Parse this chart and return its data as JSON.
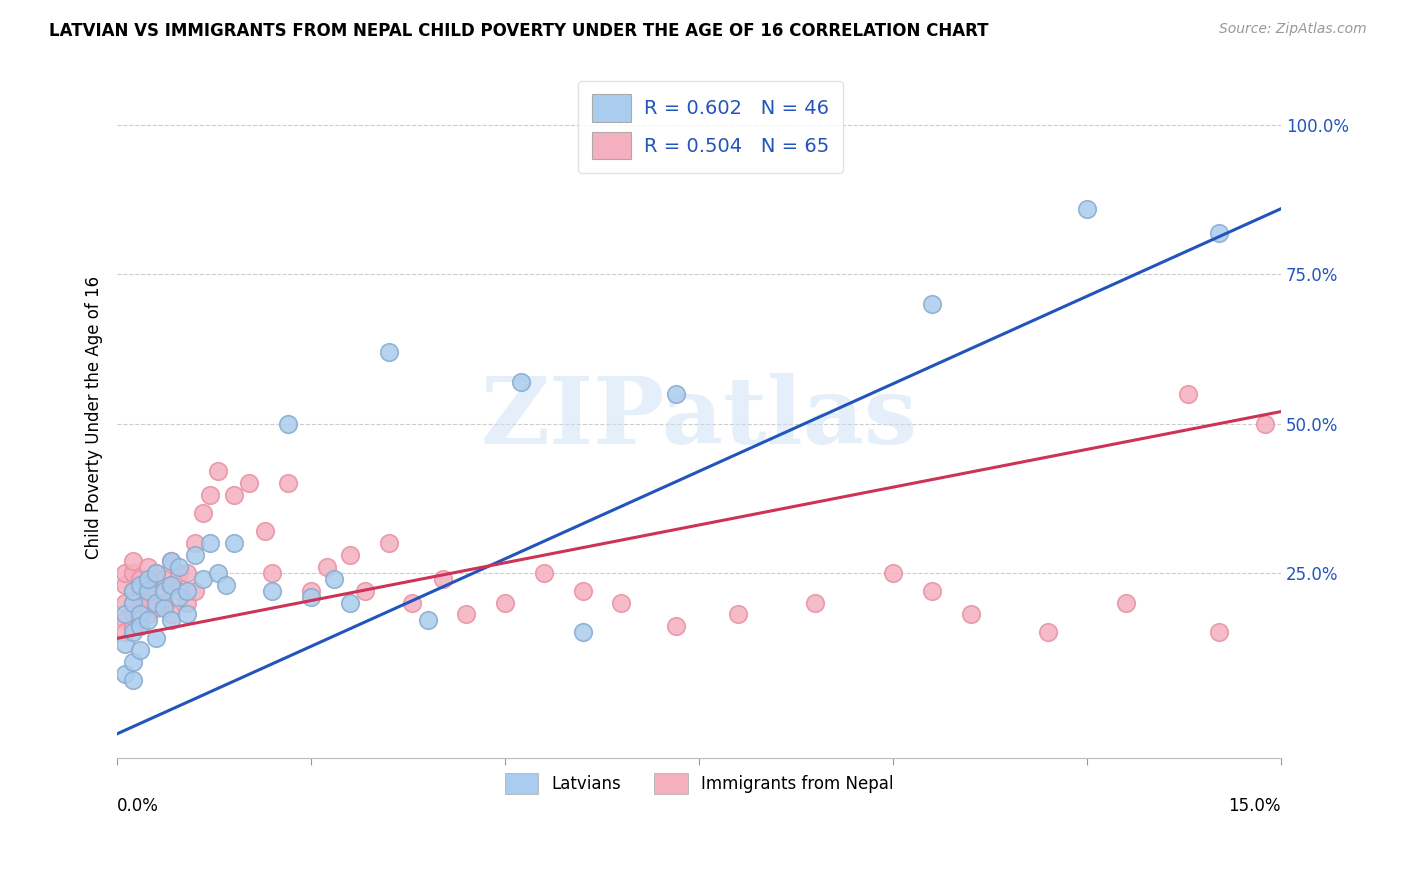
{
  "title": "LATVIAN VS IMMIGRANTS FROM NEPAL CHILD POVERTY UNDER THE AGE OF 16 CORRELATION CHART",
  "source": "Source: ZipAtlas.com",
  "ylabel": "Child Poverty Under the Age of 16",
  "ytick_labels": [
    "25.0%",
    "50.0%",
    "75.0%",
    "100.0%"
  ],
  "ytick_values": [
    0.25,
    0.5,
    0.75,
    1.0
  ],
  "xmin": 0.0,
  "xmax": 0.15,
  "ymin": -0.06,
  "ymax": 1.08,
  "legend_blue_label": "R = 0.602   N = 46",
  "legend_pink_label": "R = 0.504   N = 65",
  "bottom_legend_blue": "Latvians",
  "bottom_legend_pink": "Immigrants from Nepal",
  "blue_fill": "#aaccee",
  "pink_fill": "#f5b0c0",
  "blue_edge": "#88aacc",
  "pink_edge": "#e890a0",
  "blue_line_color": "#2255bb",
  "pink_line_color": "#cc3355",
  "legend_text_color": "#2255bb",
  "watermark": "ZIPatlas",
  "blue_line_x": [
    0.0,
    0.15
  ],
  "blue_line_y": [
    -0.02,
    0.86
  ],
  "pink_line_x": [
    0.0,
    0.15
  ],
  "pink_line_y": [
    0.14,
    0.52
  ],
  "blue_x": [
    0.001,
    0.001,
    0.001,
    0.002,
    0.002,
    0.002,
    0.002,
    0.002,
    0.003,
    0.003,
    0.003,
    0.003,
    0.004,
    0.004,
    0.004,
    0.005,
    0.005,
    0.005,
    0.006,
    0.006,
    0.007,
    0.007,
    0.007,
    0.008,
    0.008,
    0.009,
    0.009,
    0.01,
    0.011,
    0.012,
    0.013,
    0.014,
    0.015,
    0.02,
    0.022,
    0.025,
    0.028,
    0.03,
    0.035,
    0.04,
    0.052,
    0.06,
    0.072,
    0.105,
    0.125,
    0.142
  ],
  "blue_y": [
    0.18,
    0.13,
    0.08,
    0.2,
    0.15,
    0.1,
    0.22,
    0.07,
    0.18,
    0.23,
    0.12,
    0.16,
    0.22,
    0.17,
    0.24,
    0.2,
    0.14,
    0.25,
    0.19,
    0.22,
    0.23,
    0.17,
    0.27,
    0.21,
    0.26,
    0.22,
    0.18,
    0.28,
    0.24,
    0.3,
    0.25,
    0.23,
    0.3,
    0.22,
    0.5,
    0.21,
    0.24,
    0.2,
    0.62,
    0.17,
    0.57,
    0.15,
    0.55,
    0.7,
    0.86,
    0.82
  ],
  "pink_x": [
    0.001,
    0.001,
    0.001,
    0.001,
    0.001,
    0.002,
    0.002,
    0.002,
    0.002,
    0.002,
    0.002,
    0.003,
    0.003,
    0.003,
    0.003,
    0.003,
    0.004,
    0.004,
    0.004,
    0.004,
    0.005,
    0.005,
    0.005,
    0.006,
    0.006,
    0.007,
    0.007,
    0.007,
    0.008,
    0.008,
    0.009,
    0.009,
    0.01,
    0.01,
    0.011,
    0.012,
    0.013,
    0.015,
    0.017,
    0.019,
    0.02,
    0.022,
    0.025,
    0.027,
    0.03,
    0.032,
    0.035,
    0.038,
    0.042,
    0.045,
    0.05,
    0.055,
    0.06,
    0.065,
    0.072,
    0.08,
    0.09,
    0.1,
    0.105,
    0.11,
    0.12,
    0.13,
    0.138,
    0.142,
    0.148
  ],
  "pink_y": [
    0.2,
    0.17,
    0.23,
    0.15,
    0.25,
    0.18,
    0.22,
    0.16,
    0.25,
    0.2,
    0.27,
    0.21,
    0.19,
    0.24,
    0.17,
    0.22,
    0.23,
    0.18,
    0.26,
    0.2,
    0.22,
    0.25,
    0.19,
    0.24,
    0.2,
    0.23,
    0.27,
    0.18,
    0.25,
    0.22,
    0.2,
    0.25,
    0.3,
    0.22,
    0.35,
    0.38,
    0.42,
    0.38,
    0.4,
    0.32,
    0.25,
    0.4,
    0.22,
    0.26,
    0.28,
    0.22,
    0.3,
    0.2,
    0.24,
    0.18,
    0.2,
    0.25,
    0.22,
    0.2,
    0.16,
    0.18,
    0.2,
    0.25,
    0.22,
    0.18,
    0.15,
    0.2,
    0.55,
    0.15,
    0.5
  ]
}
